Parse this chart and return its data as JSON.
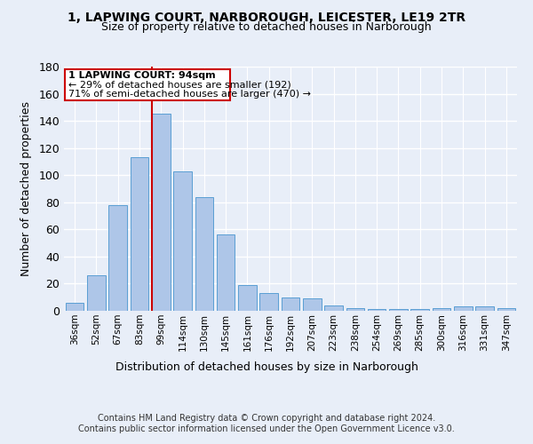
{
  "title1": "1, LAPWING COURT, NARBOROUGH, LEICESTER, LE19 2TR",
  "title2": "Size of property relative to detached houses in Narborough",
  "xlabel": "Distribution of detached houses by size in Narborough",
  "ylabel": "Number of detached properties",
  "categories": [
    "36sqm",
    "52sqm",
    "67sqm",
    "83sqm",
    "99sqm",
    "114sqm",
    "130sqm",
    "145sqm",
    "161sqm",
    "176sqm",
    "192sqm",
    "207sqm",
    "223sqm",
    "238sqm",
    "254sqm",
    "269sqm",
    "285sqm",
    "300sqm",
    "316sqm",
    "331sqm",
    "347sqm"
  ],
  "values": [
    6,
    26,
    78,
    113,
    145,
    103,
    84,
    56,
    19,
    13,
    10,
    9,
    4,
    2,
    1,
    1,
    1,
    2,
    3,
    3,
    2
  ],
  "bar_color": "#aec6e8",
  "bar_edgecolor": "#5a9fd4",
  "annotation_title": "1 LAPWING COURT: 94sqm",
  "annotation_line1": "← 29% of detached houses are smaller (192)",
  "annotation_line2": "71% of semi-detached houses are larger (470) →",
  "annotation_box_color": "#ffffff",
  "annotation_box_edgecolor": "#cc0000",
  "vline_color": "#cc0000",
  "footer1": "Contains HM Land Registry data © Crown copyright and database right 2024.",
  "footer2": "Contains public sector information licensed under the Open Government Licence v3.0.",
  "bg_color": "#e8eef8",
  "grid_color": "#ffffff",
  "ylim": [
    0,
    180
  ]
}
